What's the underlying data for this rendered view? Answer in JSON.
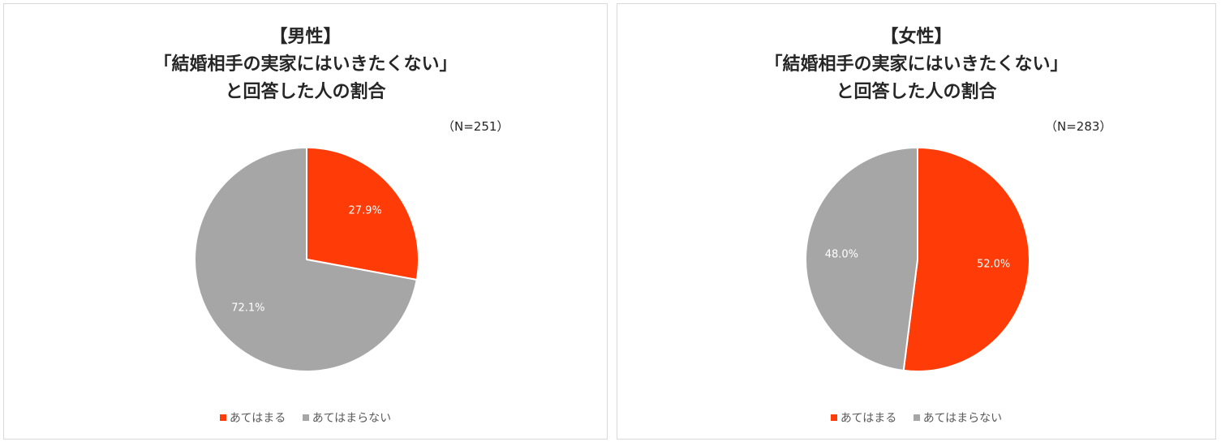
{
  "chart_data": [
    {
      "type": "pie",
      "title": [
        "【男性】",
        "「結婚相手の実家にはいきたくない」",
        "と回答した人の割合"
      ],
      "note": "（N=251）",
      "categories": [
        "あてはまる",
        "あてはまらない"
      ],
      "values": [
        27.9,
        72.1
      ],
      "value_labels": [
        "27.9%",
        "72.1%"
      ],
      "colors": [
        "#ff3b07",
        "#a6a6a6"
      ],
      "legend_position": "bottom"
    },
    {
      "type": "pie",
      "title": [
        "【女性】",
        "「結婚相手の実家にはいきたくない」",
        "と回答した人の割合"
      ],
      "note": "（N=283）",
      "categories": [
        "あてはまる",
        "あてはまらない"
      ],
      "values": [
        52.0,
        48.0
      ],
      "value_labels": [
        "52.0%",
        "48.0%"
      ],
      "colors": [
        "#ff3b07",
        "#a6a6a6"
      ],
      "legend_position": "bottom"
    }
  ]
}
